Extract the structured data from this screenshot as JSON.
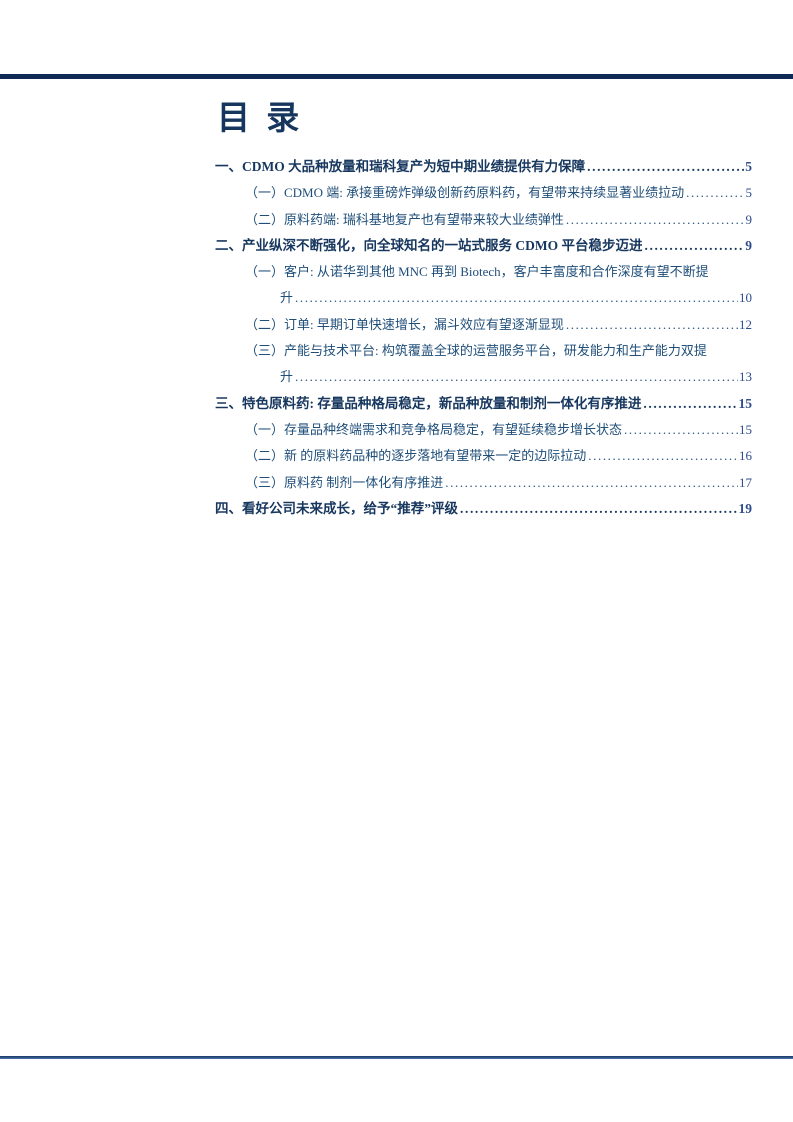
{
  "colors": {
    "top_rule": "#0f2b55",
    "bottom_rule": "#24477e",
    "title_text": "#17365d",
    "heading_text": "#17375e",
    "subitem_text": "#1f4e79",
    "page_number": "#2e4d8e"
  },
  "toc": {
    "title": "目 录",
    "leader_char": ".",
    "entries": [
      {
        "level": 1,
        "lines": [
          "一、CDMO 大品种放量和瑞科复产为短中期业绩提供有力保障"
        ],
        "page": "5"
      },
      {
        "level": 2,
        "lines": [
          "（一）CDMO 端: 承接重磅炸弹级创新药原料药，有望带来持续显著业绩拉动"
        ],
        "page": "5"
      },
      {
        "level": 2,
        "lines": [
          "（二）原料药端: 瑞科基地复产也有望带来较大业绩弹性"
        ],
        "page": "9"
      },
      {
        "level": 1,
        "lines": [
          "二、产业纵深不断强化，向全球知名的一站式服务 CDMO 平台稳步迈进"
        ],
        "page": "9"
      },
      {
        "level": 2,
        "lines": [
          "（一）客户: 从诺华到其他 MNC 再到 Biotech，客户丰富度和合作深度有望不断提",
          "升"
        ],
        "page": "10"
      },
      {
        "level": 2,
        "lines": [
          "（二）订单: 早期订单快速增长，漏斗效应有望逐渐显现"
        ],
        "page": "12"
      },
      {
        "level": 2,
        "lines": [
          "（三）产能与技术平台: 构筑覆盖全球的运营服务平台，研发能力和生产能力双提",
          "升"
        ],
        "page": "13"
      },
      {
        "level": 1,
        "lines": [
          "三、特色原料药: 存量品种格局稳定，新品种放量和制剂一体化有序推进"
        ],
        "page": "15"
      },
      {
        "level": 2,
        "lines": [
          "（一）存量品种终端需求和竞争格局稳定，有望延续稳步增长状态"
        ],
        "page": "15"
      },
      {
        "level": 2,
        "lines": [
          "（二）新 的原料药品种的逐步落地有望带来一定的边际拉动"
        ],
        "page": "16"
      },
      {
        "level": 2,
        "lines": [
          "（三）原料药 制剂一体化有序推进"
        ],
        "page": "17"
      },
      {
        "level": 1,
        "lines": [
          "四、看好公司未来成长，给予“推荐”评级"
        ],
        "page": "19"
      }
    ]
  }
}
